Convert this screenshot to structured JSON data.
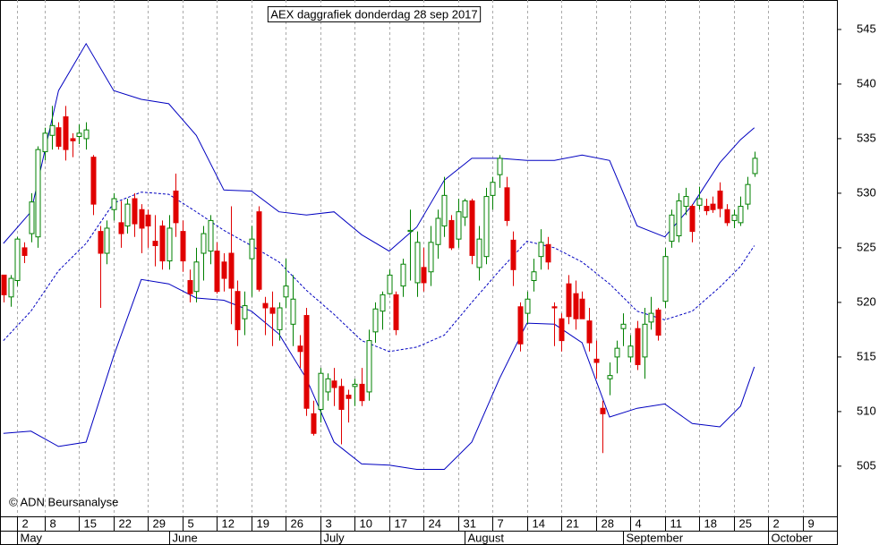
{
  "chart_data": {
    "type": "candlestick",
    "title": "AEX daggrafiek donderdag 28 sep 2017",
    "copyright": "© ADN Beursanalyse",
    "x": [
      0,
      1,
      2,
      3,
      4,
      5,
      6,
      7,
      8,
      9,
      10,
      11,
      12,
      13,
      14,
      15,
      16,
      17,
      18,
      19,
      20,
      21,
      22,
      23,
      24,
      25,
      26,
      27,
      28,
      29,
      30,
      31,
      32,
      33,
      34,
      35,
      36,
      37,
      38,
      39,
      40,
      41,
      42,
      43,
      44,
      45,
      46,
      47,
      48,
      49,
      50,
      51,
      52,
      53,
      54,
      55,
      56,
      57,
      58,
      59,
      60,
      61,
      62,
      63,
      64,
      65,
      66,
      67,
      68,
      69,
      70,
      71,
      72,
      73,
      74,
      75,
      76,
      77,
      78,
      79,
      80,
      81,
      82,
      83,
      84,
      85,
      86,
      87,
      88,
      89,
      90,
      91,
      92,
      93,
      94,
      95,
      96,
      97,
      98,
      99,
      100,
      101,
      102,
      103,
      104,
      105,
      106,
      107,
      108,
      109
    ],
    "open": [
      522.5,
      520.5,
      522,
      525,
      526.3,
      526,
      533.8,
      535.3,
      536,
      537,
      535,
      535.2,
      535,
      533.3,
      526.5,
      524.5,
      528.5,
      527.3,
      527,
      529.5,
      528.5,
      528,
      525.6,
      527,
      523.8,
      530.2,
      526.5,
      522,
      521,
      524.5,
      524.7,
      524.7,
      523.7,
      524.5,
      521,
      518.5,
      524,
      528.3,
      519.9,
      519.5,
      517.5,
      520.5,
      518,
      516,
      518.8,
      509.8,
      510.2,
      511.8,
      512.8,
      512.3,
      511.5,
      512.3,
      512.5,
      511.8,
      517.3,
      519.2,
      520.8,
      520.7,
      521.5,
      526.5,
      521.8,
      523.2,
      522.8,
      525.3,
      527,
      527.5,
      525.8,
      527.8,
      529.3,
      523.2,
      524.2,
      529.8,
      531.7,
      530.5,
      525.7,
      519.6,
      519,
      522,
      524.2,
      525.3,
      519.6,
      518.5,
      521.7,
      520.8,
      520.3,
      518.3,
      514.8,
      510.3,
      513,
      515,
      517.6,
      515,
      517.6,
      515,
      518.2,
      519.3,
      520.1,
      525.6,
      526.1,
      528.8,
      528.8,
      528.9,
      528.8,
      529,
      530.2,
      528.5,
      527.5,
      527.3,
      529,
      531.8
    ],
    "high": [
      522.5,
      522.5,
      526,
      525.5,
      530,
      534.3,
      536,
      538,
      536.5,
      538,
      535.5,
      536.3,
      536.5,
      533.5,
      527,
      527.5,
      530,
      529.3,
      529.5,
      530,
      529,
      528.5,
      528,
      527.5,
      528,
      531.8,
      527.5,
      523,
      525,
      527,
      528,
      525.5,
      524.5,
      528.8,
      522,
      521,
      527,
      528.8,
      520.5,
      521,
      520,
      524,
      522.5,
      517,
      519.5,
      511,
      514,
      513.5,
      514,
      513,
      512,
      513,
      514,
      517.5,
      520,
      521,
      523,
      521,
      524,
      528.5,
      526.5,
      525,
      527,
      528.5,
      531.5,
      528,
      529.5,
      529.5,
      529.5,
      527,
      530.5,
      531.5,
      533.5,
      531.5,
      526.5,
      520,
      521,
      524,
      526.7,
      526,
      520,
      519,
      522.5,
      522,
      521,
      519.5,
      516.5,
      511,
      514.5,
      516.5,
      519,
      517,
      518.3,
      519.5,
      520.5,
      519.5,
      525,
      528.5,
      530,
      530.5,
      529,
      530.6,
      529.5,
      529.7,
      531,
      529,
      528.5,
      529.7,
      531.5,
      533.8
    ],
    "low": [
      520,
      519.6,
      521.5,
      523.6,
      525.5,
      525,
      533,
      534,
      534,
      533,
      533.3,
      534.5,
      534,
      528,
      519.5,
      523.5,
      527.5,
      525,
      526.3,
      526,
      524.5,
      525,
      523.3,
      523,
      523,
      526,
      522.8,
      520,
      520,
      522,
      523.5,
      520.8,
      521,
      518,
      516,
      517,
      520.5,
      521,
      517,
      516,
      516.5,
      519.5,
      516,
      514,
      509.6,
      507.8,
      509,
      511,
      510.5,
      507,
      509,
      510.5,
      510.5,
      511,
      516.3,
      517.5,
      520.7,
      517,
      520.5,
      522,
      520.5,
      521,
      521.5,
      524,
      526,
      524.8,
      525,
      527,
      523.5,
      522,
      523.5,
      528.5,
      530.5,
      527,
      521.5,
      515.5,
      518,
      521,
      523,
      523,
      516,
      515.5,
      518,
      517.5,
      518.5,
      515.5,
      513,
      506.2,
      511.5,
      513.5,
      516,
      514.5,
      513.8,
      513,
      517.5,
      516.5,
      519.5,
      525,
      525.5,
      528,
      525.5,
      528.5,
      528,
      528.2,
      527.8,
      527,
      526.8,
      527,
      528.5,
      531.5
    ],
    "close": [
      520.7,
      522.2,
      525.8,
      524.3,
      529.2,
      534,
      535.5,
      536.2,
      534.3,
      534,
      534.8,
      535.5,
      535.8,
      529,
      524.5,
      526.8,
      529.5,
      526.3,
      529,
      527.2,
      526.8,
      527,
      525.2,
      523.8,
      526.8,
      527.3,
      523.8,
      520.8,
      523.7,
      526.3,
      527.5,
      521,
      522.2,
      521.3,
      517.5,
      519.7,
      525.8,
      521.2,
      519.5,
      519,
      519.5,
      521.5,
      520.3,
      515.5,
      510.3,
      508,
      513.5,
      513,
      512.2,
      510.2,
      511.2,
      512.5,
      511,
      516.5,
      519.4,
      520.7,
      522.5,
      517.5,
      523.5,
      526.6,
      525.5,
      521.8,
      525.5,
      527.7,
      529.8,
      525,
      528.3,
      529.3,
      524.3,
      525.8,
      529.7,
      531,
      533.2,
      527.5,
      523,
      516.2,
      520.3,
      522.8,
      525.5,
      523.7,
      519.5,
      516.5,
      518.7,
      518.5,
      518.5,
      516.3,
      514.5,
      509.8,
      513.3,
      515.8,
      518,
      516,
      514.3,
      518,
      519,
      517,
      524.2,
      528,
      529.3,
      529.7,
      526.5,
      529.5,
      528.4,
      528.5,
      528.6,
      527.3,
      528,
      528.8,
      530.8,
      533.2
    ],
    "up_color": "#008000",
    "down_color": "#e00000",
    "bands": [
      {
        "color": "#0000c0",
        "dashed": false,
        "x": [
          0,
          4,
          8,
          12,
          16,
          20,
          24,
          28,
          32,
          36,
          40,
          44,
          48,
          52,
          56,
          60,
          64,
          68,
          72,
          76,
          80,
          84,
          88,
          92,
          96,
          100,
          104,
          107,
          109
        ],
        "values": [
          525.4,
          528.3,
          539.4,
          543.7,
          539.4,
          538.6,
          538.2,
          535.3,
          530.3,
          530.2,
          528.3,
          528.0,
          528.3,
          526.2,
          524.7,
          526.9,
          531.2,
          533.2,
          533.2,
          533.0,
          533.0,
          533.5,
          533.0,
          527.0,
          526.0,
          528.9,
          532.8,
          534.9,
          536.0
        ]
      },
      {
        "color": "#0000c0",
        "dashed": true,
        "x": [
          0,
          4,
          8,
          12,
          16,
          20,
          24,
          28,
          32,
          36,
          40,
          44,
          48,
          52,
          56,
          60,
          64,
          68,
          72,
          76,
          80,
          84,
          88,
          92,
          96,
          100,
          104,
          107,
          109
        ],
        "values": [
          516.5,
          519.2,
          522.9,
          525.4,
          529.1,
          530.1,
          529.9,
          528.3,
          526.6,
          525.2,
          523.7,
          521.1,
          518.9,
          516.5,
          515.5,
          515.9,
          517.0,
          520.0,
          522.9,
          525.6,
          525.0,
          523.7,
          521.7,
          519.2,
          518.4,
          519.2,
          521.4,
          523.3,
          525.2
        ]
      },
      {
        "color": "#0000c0",
        "dashed": false,
        "x": [
          0,
          4,
          8,
          12,
          16,
          20,
          24,
          28,
          32,
          36,
          40,
          44,
          48,
          52,
          56,
          60,
          64,
          68,
          72,
          76,
          80,
          84,
          88,
          92,
          96,
          100,
          104,
          107,
          109
        ],
        "values": [
          508.0,
          508.2,
          506.8,
          507.2,
          515.1,
          522.1,
          521.7,
          520.4,
          520.2,
          519.2,
          517.1,
          513.0,
          507.2,
          505.2,
          505.1,
          504.7,
          504.7,
          507.2,
          513.0,
          518.1,
          518.0,
          516.3,
          509.5,
          510.3,
          510.7,
          508.9,
          508.6,
          510.5,
          514.1
        ]
      }
    ],
    "xlim": [
      -0.5,
      121
    ],
    "xticks": [
      2,
      {
        "value": 6,
        "label": "8"
      },
      {
        "value": 11,
        "label": "15"
      },
      {
        "value": 16,
        "label": "22"
      },
      {
        "value": 21,
        "label": "29"
      },
      {
        "value": 26,
        "label": "5"
      },
      {
        "value": 31,
        "label": "12"
      },
      {
        "value": 36,
        "label": "19"
      },
      {
        "value": 41,
        "label": "26"
      },
      {
        "value": 46,
        "label": "3"
      },
      {
        "value": 51,
        "label": "10"
      },
      {
        "value": 56,
        "label": "17"
      },
      {
        "value": 61,
        "label": "24"
      },
      {
        "value": 66,
        "label": "31"
      },
      {
        "value": 71,
        "label": "7"
      },
      {
        "value": 76,
        "label": "14"
      },
      {
        "value": 81,
        "label": "21"
      },
      {
        "value": 86,
        "label": "28"
      },
      {
        "value": 91,
        "label": "4"
      },
      {
        "value": 96,
        "label": "11"
      },
      {
        "value": 101,
        "label": "18"
      },
      {
        "value": 106,
        "label": "25"
      },
      {
        "value": 111,
        "label": "2"
      },
      {
        "value": 116,
        "label": "9"
      }
    ],
    "month_ticks": [
      {
        "value": 2,
        "label": "May"
      },
      {
        "value": 24,
        "label": "June"
      },
      {
        "value": 46,
        "label": "July"
      },
      {
        "value": 67,
        "label": "August"
      },
      {
        "value": 90,
        "label": "September"
      },
      {
        "value": 111,
        "label": "October"
      }
    ],
    "ylim": [
      500.4,
      547.7
    ],
    "yticks": [
      505,
      510,
      515,
      520,
      525,
      530,
      535,
      540,
      545
    ],
    "grid": true
  }
}
